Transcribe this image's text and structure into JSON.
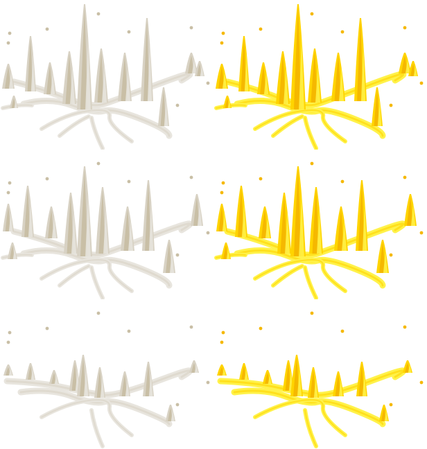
{
  "sheet": {
    "kind": "sprite-sheet",
    "grid": {
      "rows": 3,
      "columns": 2
    },
    "background": "#ffffff"
  },
  "palettes": {
    "stone": {
      "base": "#e8e5de",
      "mid": "#d8d2c4",
      "dark": "#c9bfa6"
    },
    "gold": {
      "base": "#fff24a",
      "mid": "#ffd400",
      "dark": "#f5b800"
    }
  },
  "sprites": [
    {
      "name": "crystal-cluster-tall-stone",
      "palette": "stone",
      "size": "tall"
    },
    {
      "name": "crystal-cluster-tall-gold",
      "palette": "gold",
      "size": "tall"
    },
    {
      "name": "crystal-cluster-medium-stone",
      "palette": "stone",
      "size": "medium"
    },
    {
      "name": "crystal-cluster-medium-gold",
      "palette": "gold",
      "size": "medium"
    },
    {
      "name": "crystal-cluster-short-stone",
      "palette": "stone",
      "size": "short"
    },
    {
      "name": "crystal-cluster-short-gold",
      "palette": "gold",
      "size": "short"
    }
  ]
}
